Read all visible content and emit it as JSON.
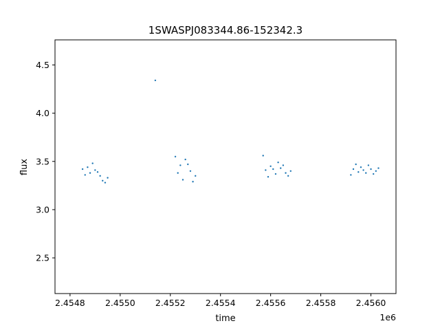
{
  "chart_data": {
    "type": "scatter",
    "title": "1SWASPJ083344.86-152342.3",
    "xlabel": "time",
    "ylabel": "flux",
    "x_offset_label": "1e6",
    "xlim": [
      2.45474,
      2.4561
    ],
    "ylim": [
      2.13,
      4.76
    ],
    "xticks": [
      2.4548,
      2.455,
      2.4552,
      2.4554,
      2.4556,
      2.4558,
      2.456
    ],
    "xtick_labels": [
      "2.4548",
      "2.4550",
      "2.4552",
      "2.4554",
      "2.4556",
      "2.4558",
      "2.4560"
    ],
    "yticks": [
      2.5,
      3.0,
      3.5,
      4.0,
      4.5
    ],
    "ytick_labels": [
      "2.5",
      "3.0",
      "3.5",
      "4.0",
      "4.5"
    ],
    "grid": false,
    "marker_color": "#1f77b4",
    "series": [
      {
        "x": [
          2.45485,
          2.45486,
          2.45487,
          2.45488,
          2.45489,
          2.4549,
          2.45491,
          2.45492,
          2.45493,
          2.45494,
          2.45495,
          2.45514,
          2.45522,
          2.45523,
          2.45524,
          2.45525,
          2.45526,
          2.45527,
          2.45528,
          2.45529,
          2.4553,
          2.45557,
          2.45558,
          2.45559,
          2.4556,
          2.45561,
          2.45562,
          2.45563,
          2.45564,
          2.45565,
          2.45566,
          2.45567,
          2.45568,
          2.45592,
          2.45593,
          2.45594,
          2.45595,
          2.45596,
          2.45597,
          2.45598,
          2.45599,
          2.456,
          2.45601,
          2.45602,
          2.45603
        ],
        "y": [
          3.42,
          3.36,
          3.44,
          3.38,
          3.48,
          3.41,
          3.39,
          3.35,
          3.3,
          3.28,
          3.33,
          4.34,
          3.55,
          3.38,
          3.46,
          3.31,
          3.52,
          3.47,
          3.4,
          3.29,
          3.35,
          3.56,
          3.41,
          3.34,
          3.45,
          3.42,
          3.37,
          3.49,
          3.43,
          3.46,
          3.38,
          3.35,
          3.4,
          3.36,
          3.42,
          3.47,
          3.39,
          3.44,
          3.41,
          3.38,
          3.46,
          3.42,
          3.37,
          3.4,
          3.43
        ]
      }
    ]
  }
}
